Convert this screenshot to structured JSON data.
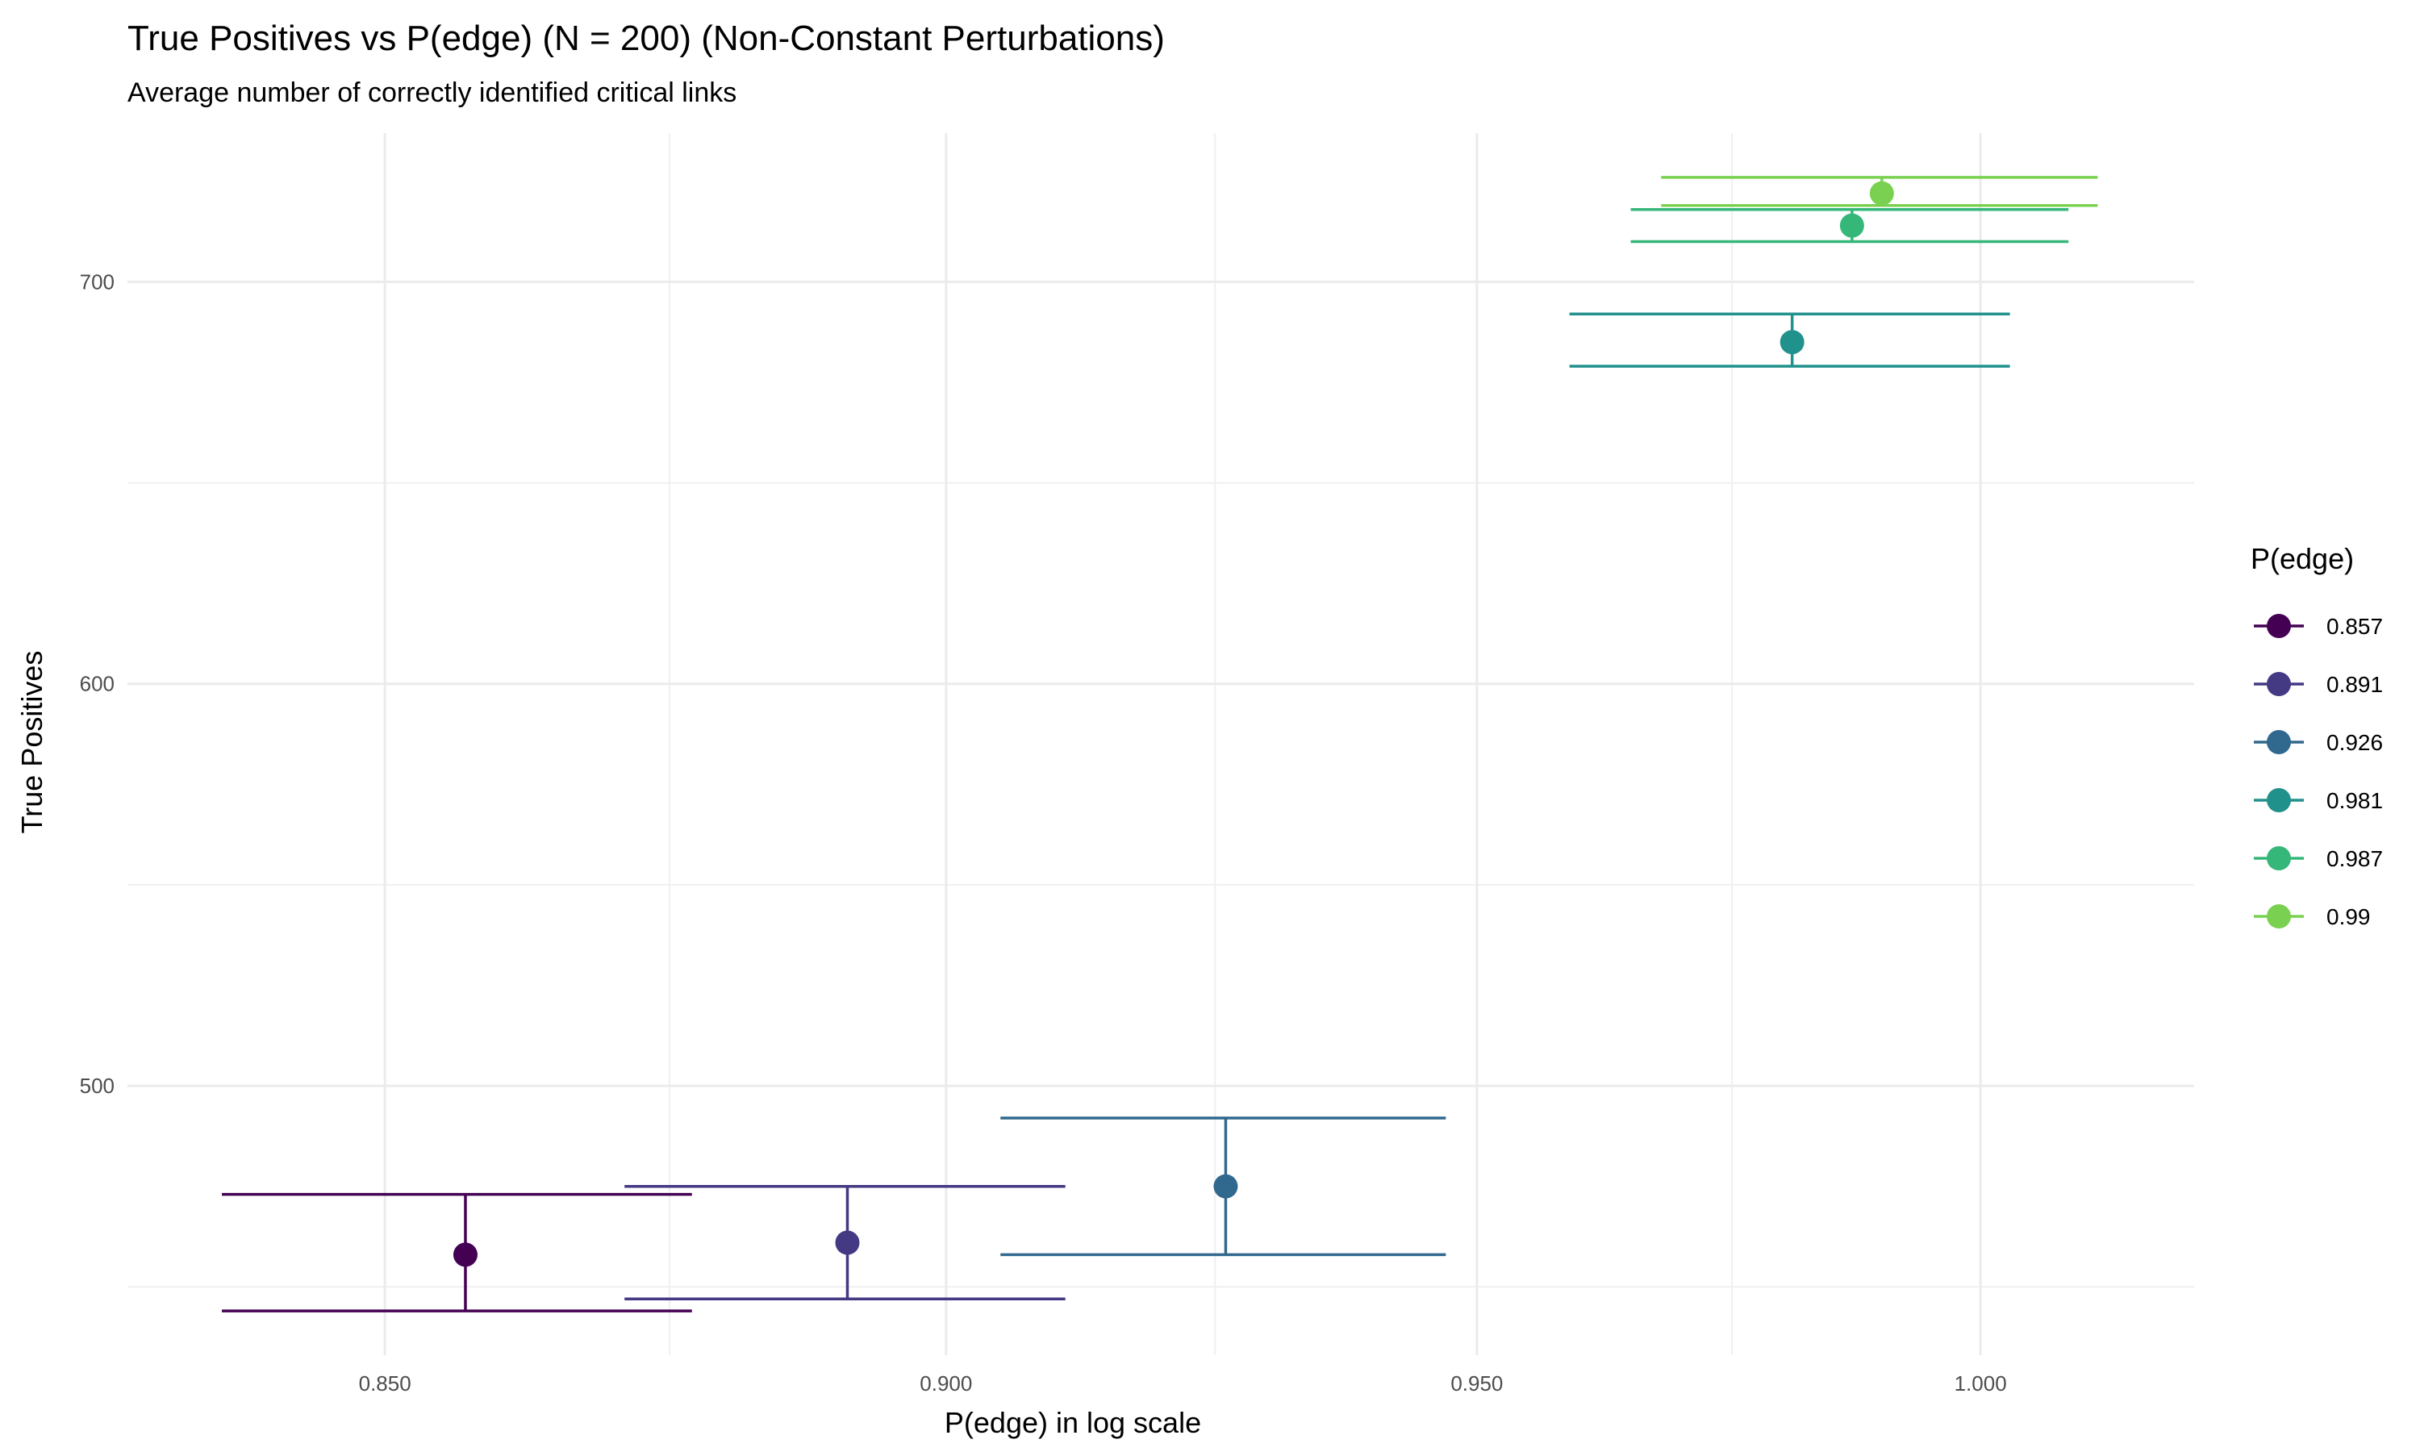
{
  "chart_data": {
    "type": "scatter",
    "title": "True Positives vs P(edge) (N = 200) (Non-Constant Perturbations)",
    "subtitle": "Average number of correctly identified critical links",
    "xlabel": "P(edge) in log scale",
    "ylabel": "True Positives",
    "x_scale": "log",
    "xlim": [
      0.828,
      1.022
    ],
    "ylim": [
      433,
      737
    ],
    "x_ticks": [
      0.85,
      0.9,
      0.95,
      1.0
    ],
    "x_tick_labels": [
      "0.850",
      "0.900",
      "0.950",
      "1.000"
    ],
    "y_ticks": [
      500,
      600,
      700
    ],
    "y_tick_labels": [
      "500",
      "600",
      "700"
    ],
    "grid": true,
    "legend": {
      "title": "P(edge)",
      "position": "right"
    },
    "series": [
      {
        "name": "0.857",
        "color": "#440154",
        "x": 0.857,
        "y": 458,
        "ymin": 444,
        "ymax": 473,
        "xmin": 0.836,
        "xmax": 0.877
      },
      {
        "name": "0.891",
        "color": "#443983",
        "x": 0.891,
        "y": 461,
        "ymin": 447,
        "ymax": 475,
        "xmin": 0.871,
        "xmax": 0.911
      },
      {
        "name": "0.926",
        "color": "#31688e",
        "x": 0.926,
        "y": 475,
        "ymin": 458,
        "ymax": 492,
        "xmin": 0.905,
        "xmax": 0.947
      },
      {
        "name": "0.981",
        "color": "#21918c",
        "x": 0.981,
        "y": 685,
        "ymin": 679,
        "ymax": 692,
        "xmin": 0.959,
        "xmax": 1.003
      },
      {
        "name": "0.987",
        "color": "#35b779",
        "x": 0.987,
        "y": 714,
        "ymin": 710,
        "ymax": 718,
        "xmin": 0.965,
        "xmax": 1.009
      },
      {
        "name": "0.99",
        "color": "#7ad151",
        "x": 0.99,
        "y": 722,
        "ymin": 719,
        "ymax": 726,
        "xmin": 0.968,
        "xmax": 1.012
      }
    ]
  }
}
